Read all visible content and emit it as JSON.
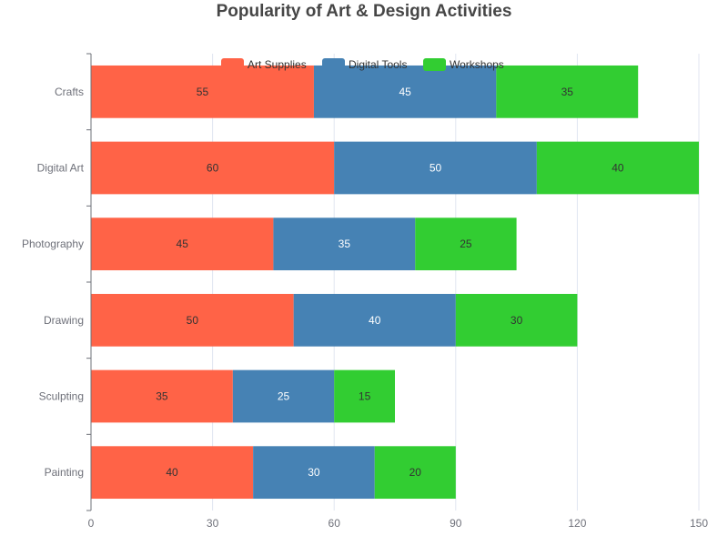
{
  "chart_data": {
    "type": "bar",
    "orientation": "horizontal",
    "stacked": true,
    "title": "Popularity of Art & Design Activities",
    "categories": [
      "Painting",
      "Sculpting",
      "Drawing",
      "Photography",
      "Digital Art",
      "Crafts"
    ],
    "series": [
      {
        "name": "Art Supplies",
        "color": "#ff6347",
        "label_color": "#333333",
        "values": [
          40,
          35,
          50,
          45,
          60,
          55
        ]
      },
      {
        "name": "Digital Tools",
        "color": "#4682b4",
        "label_color": "#ffffff",
        "values": [
          30,
          25,
          40,
          35,
          50,
          45
        ]
      },
      {
        "name": "Workshops",
        "color": "#32cd32",
        "label_color": "#333333",
        "values": [
          20,
          15,
          30,
          25,
          40,
          35
        ]
      }
    ],
    "xlim": [
      0,
      150
    ],
    "xticks": [
      0,
      30,
      60,
      90,
      120,
      150
    ],
    "grid": "vertical",
    "legend_position": "top"
  }
}
